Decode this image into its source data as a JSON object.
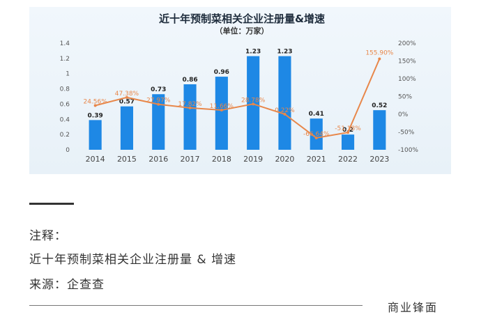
{
  "chart_data": {
    "type": "bar",
    "title": "近十年预制菜相关企业注册量&增速",
    "subtitle": "（单位：万家）",
    "categories": [
      "2014",
      "2015",
      "2016",
      "2017",
      "2018",
      "2019",
      "2020",
      "2021",
      "2022",
      "2023"
    ],
    "series": [
      {
        "type": "bar",
        "axis": "left",
        "values": [
          0.39,
          0.57,
          0.73,
          0.86,
          0.96,
          1.23,
          1.23,
          0.41,
          0.2,
          0.52
        ],
        "labels": [
          "0.39",
          "0.57",
          "0.73",
          "0.86",
          "0.96",
          "1.23",
          "1.23",
          "0.41",
          "0.2",
          "0.52"
        ],
        "color": "#1e88e5"
      },
      {
        "type": "line",
        "axis": "right",
        "values": [
          24.56,
          47.38,
          27.97,
          17.82,
          11.66,
          28.78,
          0.22,
          -66.64,
          -51.18,
          155.9
        ],
        "labels": [
          "24.56%",
          "47.38%",
          "27.97%",
          "17.82%",
          "11.66%",
          "28.78%",
          "0.22%",
          "-66.64%",
          "-51.18%",
          "155.90%"
        ],
        "color": "#e8874a"
      }
    ],
    "ylim": [
      0,
      1.4
    ],
    "y_ticks": [
      "0",
      "0.2",
      "0.4",
      "0.6",
      "0.8",
      "1",
      "1.2",
      "1.4"
    ],
    "y2lim": [
      -100,
      200
    ],
    "y2_ticks": [
      "-100%",
      "-50%",
      "0%",
      "50%",
      "100%",
      "150%",
      "200%"
    ],
    "grid": false,
    "background": "#edf4fa"
  },
  "notes": {
    "label": "注释：",
    "text": "近十年预制菜相关企业注册量 & 增速",
    "source": "来源：企查查"
  },
  "brand": "商业锋面"
}
